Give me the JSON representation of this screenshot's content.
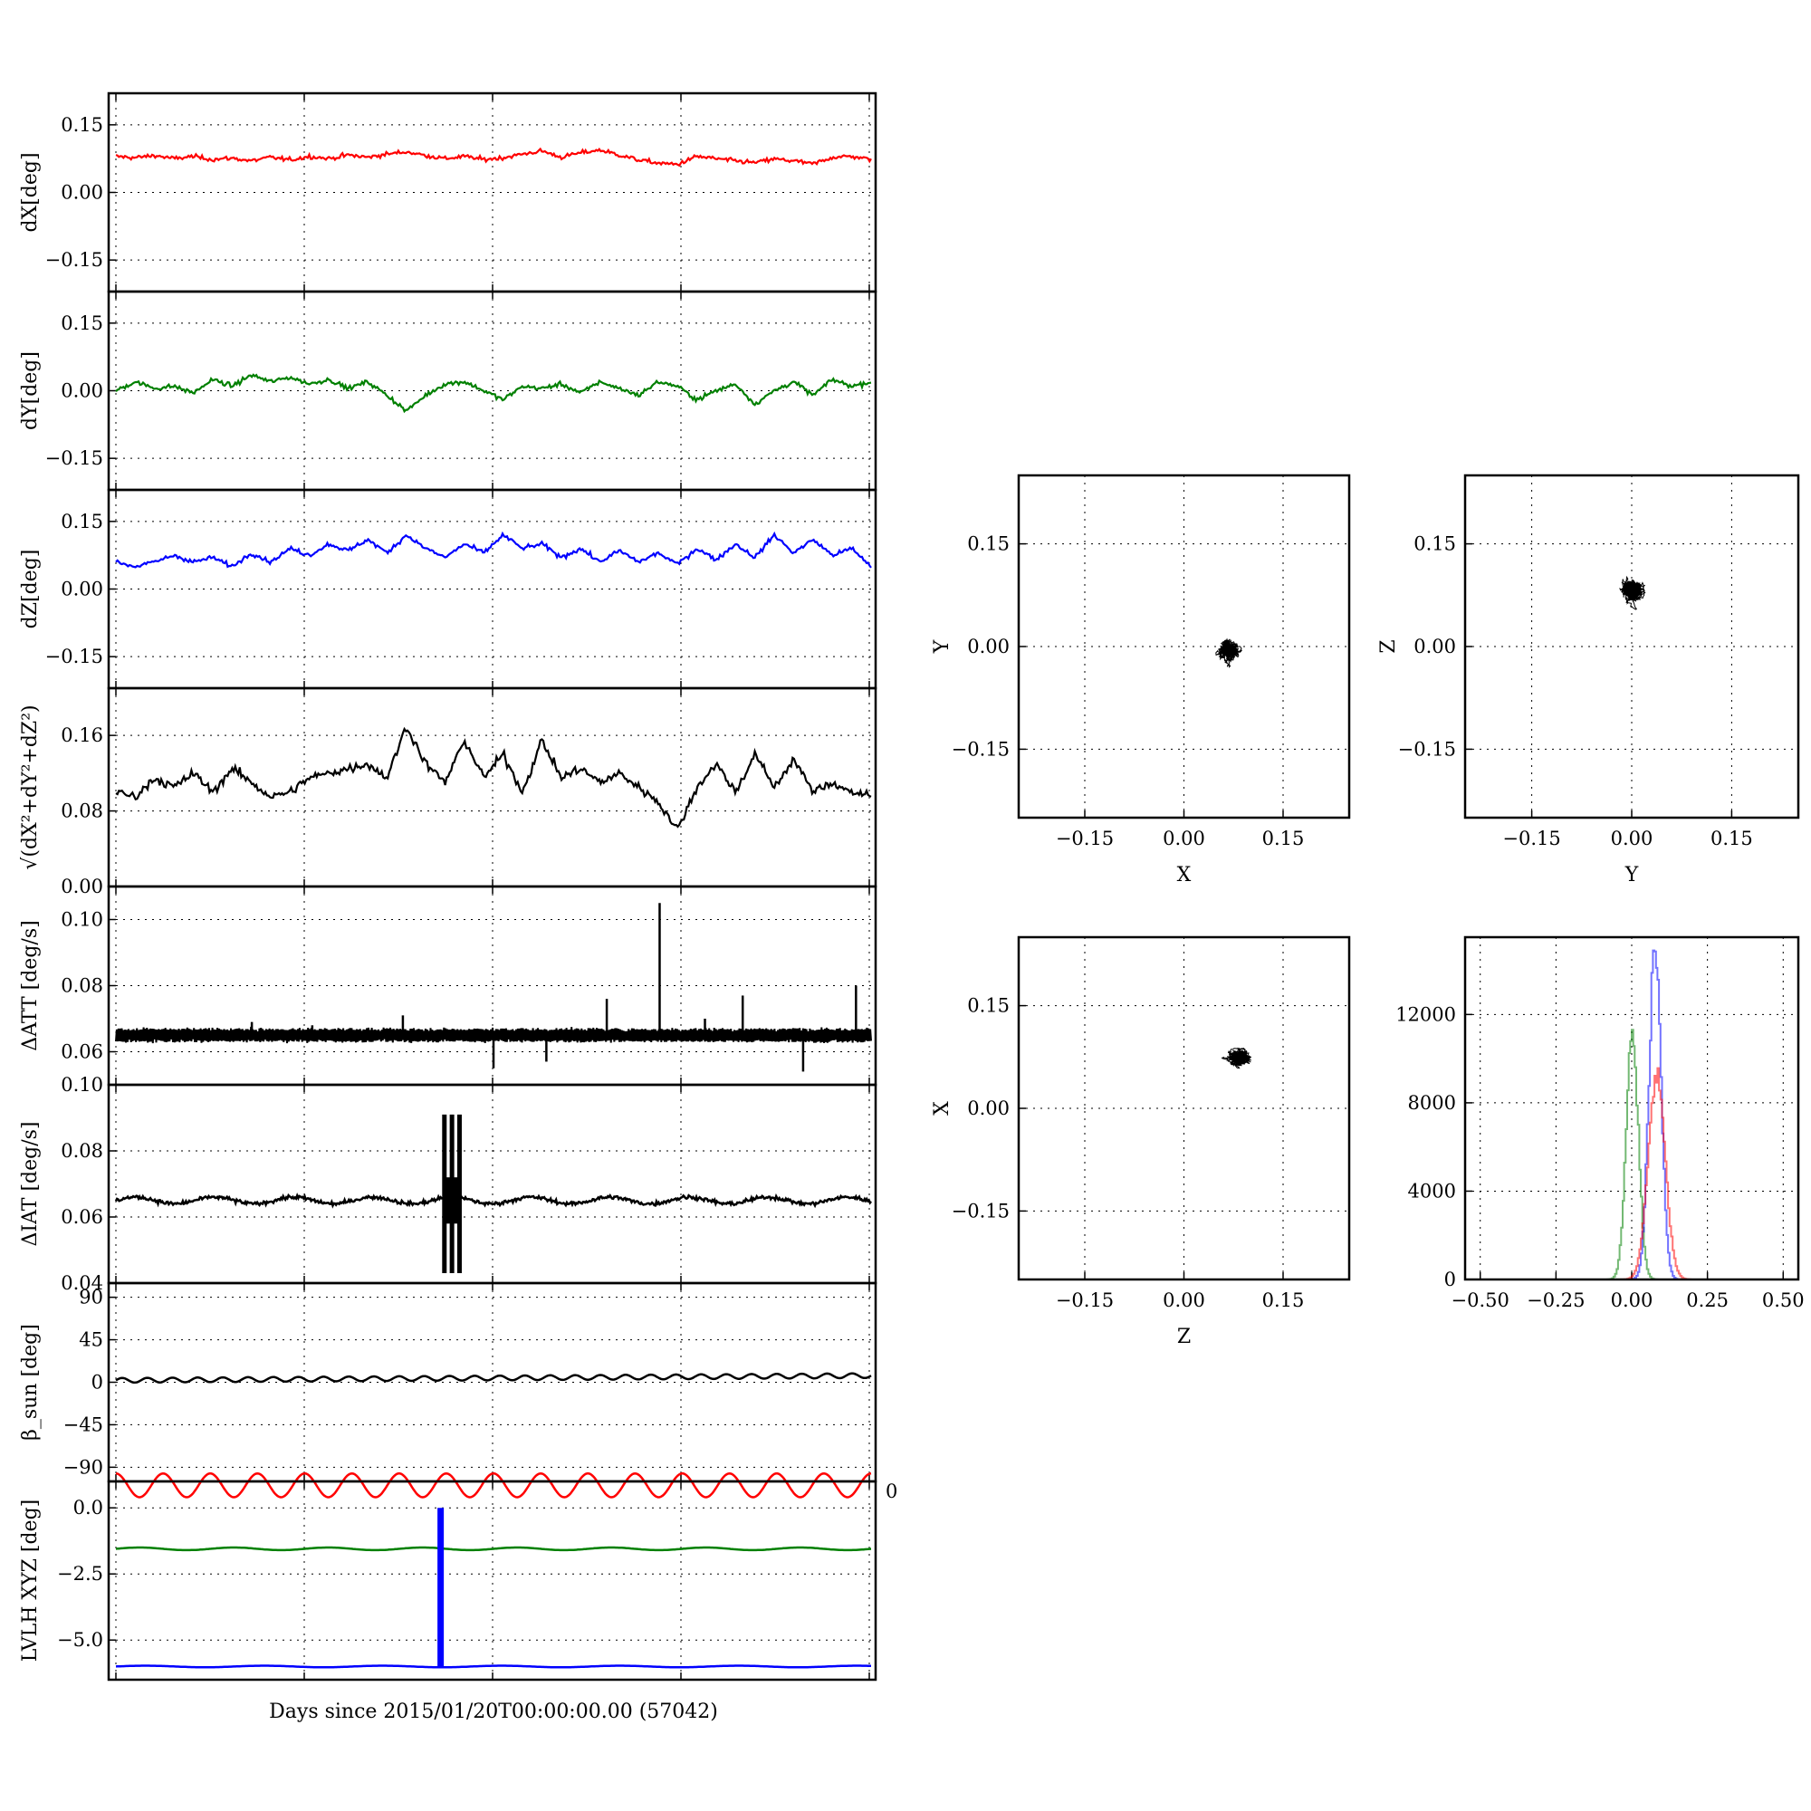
{
  "figure": {
    "xlabel": "Days since 2015/01/20T00:00:00.00 (57042)",
    "stray_tick_label": "0"
  },
  "chart_data": [
    {
      "type": "line",
      "id": "dx",
      "ylabel": "dX[deg]",
      "ylim": [
        -0.22,
        0.22
      ],
      "yticks": [
        -0.15,
        0.0,
        0.15
      ],
      "ytick_labels": [
        "−0.15",
        "0.00",
        "0.15"
      ],
      "grid": true,
      "series": [
        {
          "color": "#ff0000",
          "values": [
            0.08,
            0.077,
            0.082,
            0.075,
            0.08,
            0.073,
            0.076,
            0.07,
            0.078,
            0.072,
            0.08,
            0.075,
            0.083,
            0.078,
            0.085,
            0.09,
            0.082,
            0.075,
            0.08,
            0.073,
            0.077,
            0.085,
            0.092,
            0.078,
            0.088,
            0.094,
            0.083,
            0.072,
            0.065,
            0.062,
            0.08,
            0.075,
            0.07,
            0.066,
            0.074,
            0.07,
            0.063,
            0.078,
            0.08,
            0.073
          ]
        }
      ]
    },
    {
      "type": "line",
      "id": "dy",
      "ylabel": "dY[deg]",
      "ylim": [
        -0.22,
        0.22
      ],
      "yticks": [
        -0.15,
        0.0,
        0.15
      ],
      "ytick_labels": [
        "−0.15",
        "0.00",
        "0.15"
      ],
      "grid": true,
      "series": [
        {
          "color": "#008000",
          "values": [
            0.0,
            0.02,
            0.005,
            0.01,
            -0.005,
            0.025,
            0.01,
            0.035,
            0.02,
            0.03,
            0.015,
            0.025,
            0.005,
            0.02,
            -0.01,
            -0.045,
            -0.01,
            0.015,
            0.02,
            0.0,
            -0.02,
            0.01,
            0.005,
            0.015,
            -0.005,
            0.02,
            0.005,
            -0.01,
            0.02,
            0.01,
            -0.02,
            0.0,
            0.015,
            -0.03,
            0.0,
            0.02,
            -0.01,
            0.025,
            0.01,
            0.02
          ]
        }
      ]
    },
    {
      "type": "line",
      "id": "dz",
      "ylabel": "dZ[deg]",
      "ylim": [
        -0.22,
        0.22
      ],
      "yticks": [
        -0.15,
        0.0,
        0.15
      ],
      "ytick_labels": [
        "−0.15",
        "0.00",
        "0.15"
      ],
      "grid": true,
      "series": [
        {
          "color": "#0000ff",
          "values": [
            0.06,
            0.05,
            0.06,
            0.075,
            0.06,
            0.07,
            0.05,
            0.08,
            0.06,
            0.09,
            0.075,
            0.1,
            0.085,
            0.11,
            0.08,
            0.12,
            0.09,
            0.07,
            0.1,
            0.08,
            0.12,
            0.09,
            0.1,
            0.07,
            0.09,
            0.06,
            0.085,
            0.06,
            0.08,
            0.055,
            0.09,
            0.065,
            0.1,
            0.07,
            0.12,
            0.08,
            0.11,
            0.075,
            0.09,
            0.05
          ]
        }
      ]
    },
    {
      "type": "line",
      "id": "dr",
      "ylabel": "√(dX²+dY²+dZ²)",
      "ylim": [
        0.0,
        0.21
      ],
      "yticks": [
        0.0,
        0.08,
        0.16
      ],
      "ytick_labels": [
        "0.00",
        "0.08",
        "0.16"
      ],
      "grid": true,
      "series": [
        {
          "color": "#000000",
          "values": [
            0.1,
            0.095,
            0.115,
            0.105,
            0.12,
            0.1,
            0.125,
            0.11,
            0.095,
            0.1,
            0.115,
            0.12,
            0.125,
            0.13,
            0.115,
            0.17,
            0.13,
            0.11,
            0.155,
            0.115,
            0.14,
            0.1,
            0.155,
            0.115,
            0.125,
            0.11,
            0.12,
            0.105,
            0.09,
            0.06,
            0.105,
            0.13,
            0.1,
            0.14,
            0.105,
            0.135,
            0.1,
            0.11,
            0.1,
            0.095
          ]
        }
      ]
    },
    {
      "type": "line",
      "id": "datt",
      "ylabel": "ΔATT [deg/s]",
      "ylim": [
        0.05,
        0.11
      ],
      "yticks": [
        0.06,
        0.08,
        0.1
      ],
      "ytick_labels": [
        "0.06",
        "0.08",
        "0.10"
      ],
      "grid": true,
      "baseline": 0.065,
      "spikes": [
        [
          0.18,
          0.069
        ],
        [
          0.26,
          0.068
        ],
        [
          0.38,
          0.071
        ],
        [
          0.5,
          0.055
        ],
        [
          0.57,
          0.057
        ],
        [
          0.65,
          0.076
        ],
        [
          0.72,
          0.105
        ],
        [
          0.78,
          0.07
        ],
        [
          0.83,
          0.077
        ],
        [
          0.91,
          0.054
        ],
        [
          0.98,
          0.08
        ]
      ],
      "series": [
        {
          "color": "#000000",
          "values": [
            0.065
          ]
        }
      ]
    },
    {
      "type": "line",
      "id": "diat",
      "ylabel": "ΔIAT [deg/s]",
      "ylim": [
        0.04,
        0.1
      ],
      "yticks": [
        0.04,
        0.06,
        0.08,
        0.1
      ],
      "ytick_labels": [
        "0.04",
        "0.06",
        "0.08",
        "0.10"
      ],
      "grid": true,
      "baseline": 0.065,
      "burst": {
        "x_start": 0.435,
        "x_end": 0.455,
        "low": 0.043,
        "high": 0.091
      },
      "series": [
        {
          "color": "#000000",
          "values": [
            0.065
          ]
        }
      ]
    },
    {
      "type": "line",
      "id": "beta",
      "ylabel": "β_sun [deg]",
      "ylim": [
        -105,
        105
      ],
      "yticks": [
        -90,
        -45,
        0,
        45,
        90
      ],
      "ytick_labels": [
        "−90",
        "−45",
        "0",
        "45",
        "90"
      ],
      "grid": true,
      "series": [
        {
          "color": "#000000",
          "values": [
            2,
            7
          ]
        }
      ]
    },
    {
      "type": "line",
      "id": "lvlh",
      "ylabel": "LVLH XYZ [deg]",
      "ylim": [
        -6.5,
        1.0
      ],
      "yticks": [
        -5.0,
        -2.5,
        0.0
      ],
      "ytick_labels": [
        "−5.0",
        "−2.5",
        "0.0"
      ],
      "grid": true,
      "series": [
        {
          "color": "#ff0000",
          "values": [
            0.4,
            1.3
          ]
        },
        {
          "color": "#008000",
          "values": [
            -1.6,
            -1.5
          ]
        },
        {
          "color": "#0000ff",
          "values": [
            -6.0,
            -6.0
          ]
        }
      ],
      "spike": {
        "x": 0.43,
        "from": -6.0,
        "to": 0.0,
        "color": "#0000ff"
      }
    },
    {
      "type": "scatter",
      "id": "xy",
      "xlabel": "X",
      "ylabel": "Y",
      "xlim": [
        -0.25,
        0.25
      ],
      "ylim": [
        -0.25,
        0.25
      ],
      "ticks": [
        -0.15,
        0.0,
        0.15
      ],
      "tick_labels": [
        "−0.15",
        "0.00",
        "0.15"
      ],
      "center": [
        0.07,
        -0.005
      ],
      "spread": [
        0.016,
        0.018
      ],
      "grid": true
    },
    {
      "type": "scatter",
      "id": "yz",
      "xlabel": "Y",
      "ylabel": "Z",
      "xlim": [
        -0.25,
        0.25
      ],
      "ylim": [
        -0.25,
        0.25
      ],
      "ticks": [
        -0.15,
        0.0,
        0.15
      ],
      "tick_labels": [
        "−0.15",
        "0.00",
        "0.15"
      ],
      "center": [
        0.0,
        0.085
      ],
      "spread": [
        0.018,
        0.018
      ],
      "grid": true
    },
    {
      "type": "scatter",
      "id": "zx",
      "xlabel": "Z",
      "ylabel": "X",
      "xlim": [
        -0.25,
        0.25
      ],
      "ylim": [
        -0.25,
        0.25
      ],
      "ticks": [
        -0.15,
        0.0,
        0.15
      ],
      "tick_labels": [
        "−0.15",
        "0.00",
        "0.15"
      ],
      "center": [
        0.085,
        0.075
      ],
      "spread": [
        0.02,
        0.012
      ],
      "grid": true
    },
    {
      "type": "bar",
      "id": "hist",
      "xlim": [
        -0.55,
        0.55
      ],
      "ylim": [
        0,
        15500
      ],
      "xticks": [
        -0.5,
        -0.25,
        0.0,
        0.25,
        0.5
      ],
      "xtick_labels": [
        "−0.50",
        "−0.25",
        "0.00",
        "0.25",
        "0.50"
      ],
      "yticks": [
        0,
        4000,
        8000,
        12000
      ],
      "ytick_labels": [
        "0",
        "4000",
        "8000",
        "12000"
      ],
      "grid": true,
      "series": [
        {
          "color": "#008000",
          "center": 0.0,
          "peak": 11000,
          "width": 0.02
        },
        {
          "color": "#0000ff",
          "center": 0.075,
          "peak": 15200,
          "width": 0.02
        },
        {
          "color": "#ff0000",
          "center": 0.08,
          "peak": 9200,
          "width": 0.028
        }
      ]
    }
  ]
}
